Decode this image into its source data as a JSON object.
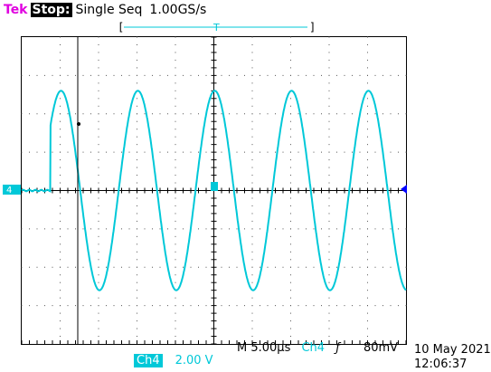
{
  "header": {
    "brand": "Tek",
    "run_state": "Stop:",
    "trigger_mode": "Single Seq",
    "sample_rate": "1.00GS/s",
    "trigger_position_marker": "T"
  },
  "channel_marker": "4",
  "footer": {
    "channel_tag": "Ch4",
    "channel_scale": "2.00 V",
    "timebase": "M 5.00µs",
    "trigger_source": "Ch4",
    "trigger_slope_symbol": "ƒ",
    "trigger_level": "80mV",
    "date": "10 May 2021",
    "time": "12:06:37"
  },
  "colors": {
    "trace": "#00c8d8",
    "brand": "#e000e0",
    "graticule": "#000000"
  },
  "waveform": {
    "description_free": true,
    "divisions_x": 10,
    "divisions_y": 8,
    "pre_trigger_level_div": 0,
    "step_time_div": 0.75,
    "sine_start_div": 0.75,
    "sine_period_div": 2.0,
    "amplitude_div": 2.6
  }
}
